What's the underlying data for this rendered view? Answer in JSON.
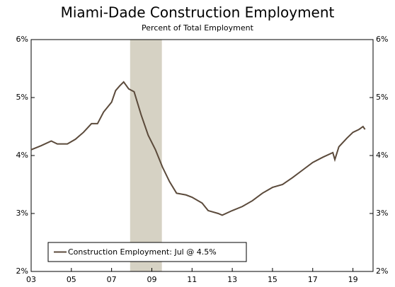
{
  "chart_data": {
    "type": "line",
    "title": "Miami-Dade Construction Employment",
    "subtitle": "Percent of Total Employment",
    "x": [
      2003.0,
      2003.5,
      2004.0,
      2004.3,
      2004.8,
      2005.2,
      2005.6,
      2006.0,
      2006.3,
      2006.6,
      2007.0,
      2007.2,
      2007.4,
      2007.6,
      2007.85,
      2008.12,
      2008.47,
      2008.82,
      2009.18,
      2009.53,
      2009.88,
      2010.23,
      2010.7,
      2011.0,
      2011.5,
      2011.8,
      2012.3,
      2012.5,
      2013.0,
      2013.5,
      2014.0,
      2014.5,
      2015.0,
      2015.5,
      2016.0,
      2016.5,
      2017.0,
      2017.5,
      2018.0,
      2018.1,
      2018.3,
      2018.7,
      2019.0,
      2019.3,
      2019.5,
      2019.6
    ],
    "series": [
      {
        "name": "Construction Employment: Jul @ 4.5%",
        "color": "#5b4a3b",
        "values": [
          4.1,
          4.17,
          4.25,
          4.2,
          4.2,
          4.28,
          4.4,
          4.55,
          4.55,
          4.75,
          4.92,
          5.12,
          5.2,
          5.27,
          5.15,
          5.1,
          4.7,
          4.35,
          4.1,
          3.8,
          3.55,
          3.35,
          3.32,
          3.28,
          3.18,
          3.05,
          3.0,
          2.97,
          3.05,
          3.12,
          3.22,
          3.35,
          3.45,
          3.5,
          3.62,
          3.75,
          3.88,
          3.97,
          4.05,
          3.93,
          4.15,
          4.3,
          4.4,
          4.45,
          4.5,
          4.45
        ]
      }
    ],
    "recession": {
      "start": 2007.92,
      "end": 2009.5,
      "color": "#d6d2c4"
    },
    "xlim": [
      2003,
      2020
    ],
    "xticks": [
      {
        "value": 2003,
        "label": "03"
      },
      {
        "value": 2005,
        "label": "05"
      },
      {
        "value": 2007,
        "label": "07"
      },
      {
        "value": 2009,
        "label": "09"
      },
      {
        "value": 2011,
        "label": "11"
      },
      {
        "value": 2013,
        "label": "13"
      },
      {
        "value": 2015,
        "label": "15"
      },
      {
        "value": 2017,
        "label": "17"
      },
      {
        "value": 2019,
        "label": "19"
      }
    ],
    "ylim": [
      2,
      6
    ],
    "yticks": [
      {
        "value": 2,
        "label": "2%"
      },
      {
        "value": 3,
        "label": "3%"
      },
      {
        "value": 4,
        "label": "4%"
      },
      {
        "value": 5,
        "label": "5%"
      },
      {
        "value": 6,
        "label": "6%"
      }
    ],
    "y2lim": [
      2,
      6
    ],
    "y2ticks": [
      {
        "value": 2,
        "label": "2%"
      },
      {
        "value": 3,
        "label": "3%"
      },
      {
        "value": 4,
        "label": "4%"
      },
      {
        "value": 5,
        "label": "5%"
      },
      {
        "value": 6,
        "label": "6%"
      }
    ]
  }
}
